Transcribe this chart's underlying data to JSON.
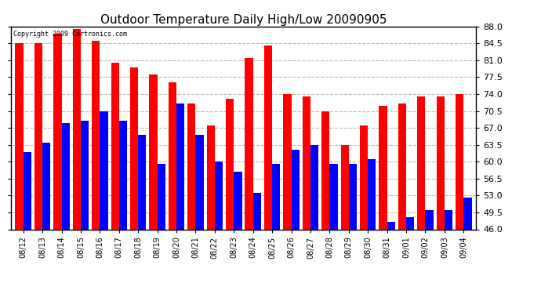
{
  "title": "Outdoor Temperature Daily High/Low 20090905",
  "copyright": "Copyright 2009 Cartronics.com",
  "ylim": [
    46.0,
    88.0
  ],
  "yticks": [
    46.0,
    49.5,
    53.0,
    56.5,
    60.0,
    63.5,
    67.0,
    70.5,
    74.0,
    77.5,
    81.0,
    84.5,
    88.0
  ],
  "categories": [
    "08/12",
    "08/13",
    "08/14",
    "08/15",
    "08/16",
    "08/17",
    "08/18",
    "08/19",
    "08/20",
    "08/21",
    "08/22",
    "08/23",
    "08/24",
    "08/25",
    "08/26",
    "08/27",
    "08/28",
    "08/29",
    "08/30",
    "08/31",
    "09/01",
    "09/02",
    "09/03",
    "09/04"
  ],
  "highs": [
    84.5,
    84.5,
    86.5,
    87.5,
    85.0,
    80.5,
    79.5,
    78.0,
    76.5,
    72.0,
    67.5,
    73.0,
    81.5,
    84.0,
    74.0,
    73.5,
    70.5,
    63.5,
    67.5,
    71.5,
    72.0,
    73.5,
    73.5,
    74.0
  ],
  "lows": [
    62.0,
    64.0,
    68.0,
    68.5,
    70.5,
    68.5,
    65.5,
    59.5,
    72.0,
    65.5,
    60.0,
    58.0,
    53.5,
    59.5,
    62.5,
    63.5,
    59.5,
    59.5,
    60.5,
    47.5,
    48.5,
    50.0,
    50.0,
    52.5
  ],
  "high_color": "#ff0000",
  "low_color": "#0000ff",
  "background_color": "#ffffff",
  "grid_color": "#bbbbbb",
  "title_fontsize": 11,
  "bar_width": 0.42
}
